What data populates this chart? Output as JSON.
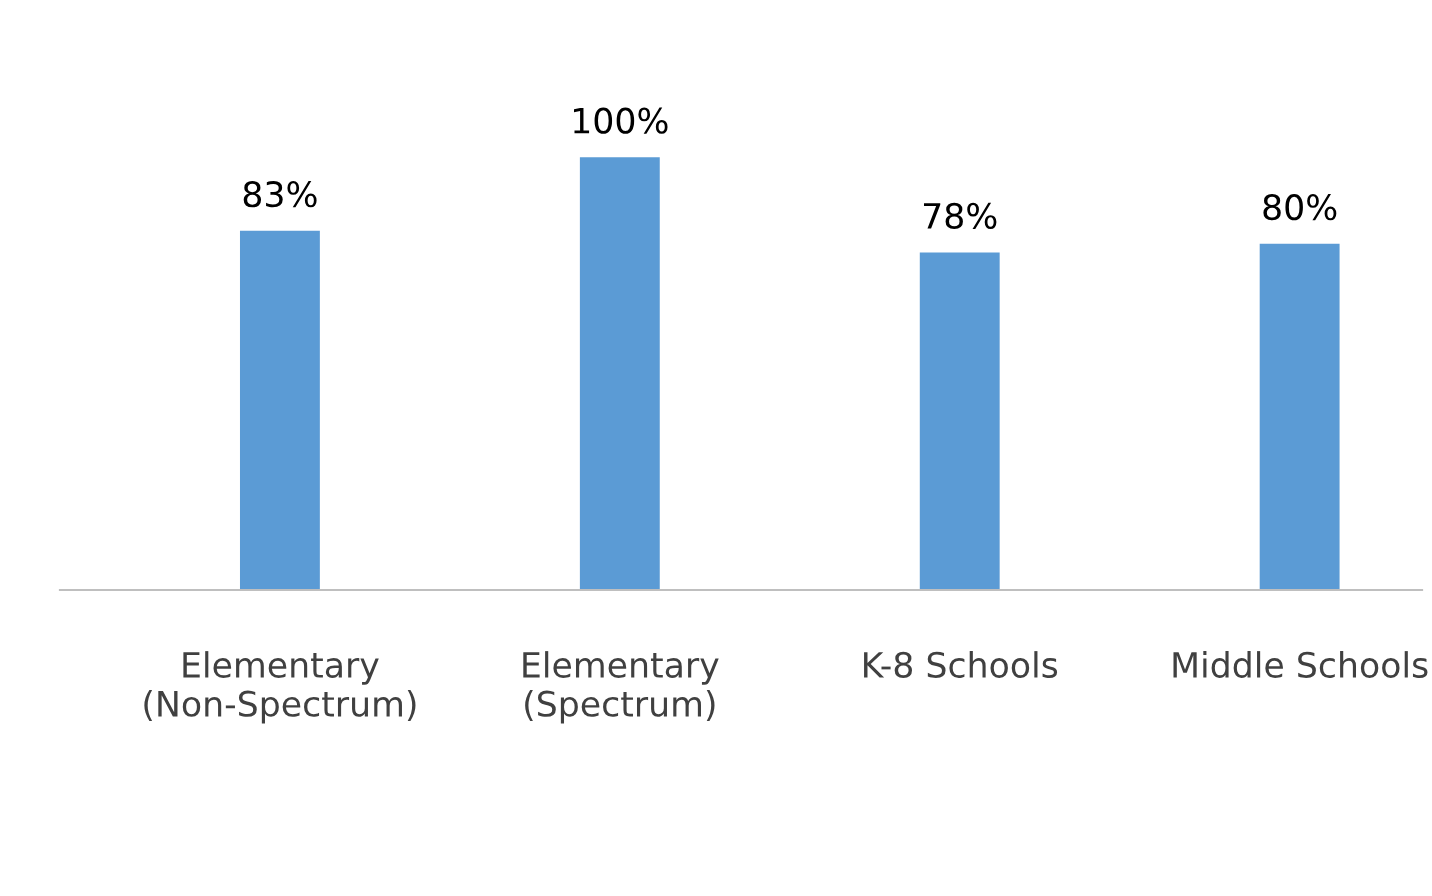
{
  "chart_data": {
    "type": "bar",
    "categories": [
      "Elementary\n(Non-Spectrum)",
      "Elementary\n(Spectrum)",
      "K-8 Schools",
      "Middle Schools"
    ],
    "values": [
      83,
      100,
      78,
      80
    ],
    "value_labels": [
      "83%",
      "100%",
      "78%",
      "80%"
    ],
    "color": "#5b9bd5",
    "tick_labels": "x",
    "grid": false,
    "legend": false
  }
}
